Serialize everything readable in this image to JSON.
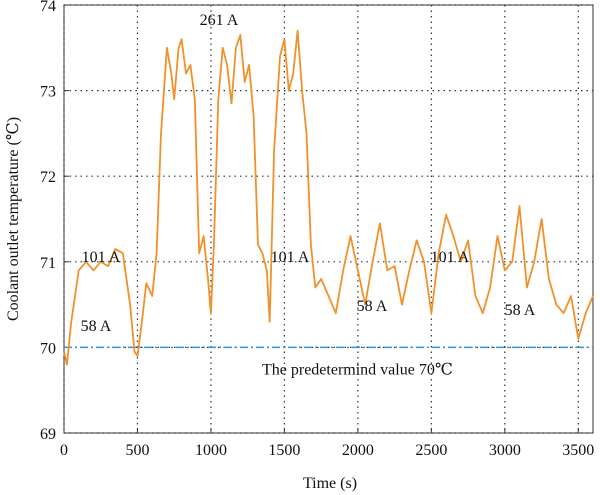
{
  "chart_data": {
    "type": "line",
    "x_label": "Time (s)",
    "y_label": "Coolant outlet temperature (℃)",
    "x": [
      0,
      20,
      50,
      100,
      150,
      200,
      250,
      300,
      350,
      400,
      450,
      480,
      500,
      530,
      560,
      600,
      630,
      660,
      700,
      730,
      750,
      780,
      800,
      830,
      860,
      890,
      920,
      950,
      980,
      1000,
      1020,
      1050,
      1080,
      1110,
      1140,
      1170,
      1200,
      1230,
      1260,
      1290,
      1320,
      1350,
      1380,
      1400,
      1430,
      1470,
      1500,
      1530,
      1560,
      1590,
      1620,
      1650,
      1680,
      1710,
      1750,
      1800,
      1850,
      1900,
      1950,
      2000,
      2050,
      2100,
      2150,
      2200,
      2250,
      2300,
      2350,
      2400,
      2450,
      2500,
      2550,
      2600,
      2650,
      2700,
      2750,
      2800,
      2850,
      2900,
      2950,
      3000,
      3050,
      3100,
      3150,
      3200,
      3250,
      3300,
      3350,
      3400,
      3450,
      3500,
      3550,
      3600
    ],
    "series": [
      {
        "name": "Coolant outlet temperature",
        "color": "#f0922b",
        "values": [
          69.95,
          69.8,
          70.3,
          70.9,
          71.0,
          70.9,
          71.0,
          70.95,
          71.15,
          71.1,
          70.5,
          69.95,
          69.9,
          70.3,
          70.75,
          70.6,
          71.1,
          72.5,
          73.5,
          73.2,
          72.9,
          73.5,
          73.6,
          73.2,
          73.3,
          72.9,
          71.1,
          71.3,
          70.8,
          70.4,
          71.2,
          72.9,
          73.5,
          73.3,
          72.85,
          73.5,
          73.65,
          73.1,
          73.3,
          72.7,
          71.2,
          71.1,
          70.9,
          70.3,
          72.3,
          73.4,
          73.6,
          73.0,
          73.2,
          73.7,
          73.0,
          72.5,
          71.2,
          70.7,
          70.8,
          70.6,
          70.4,
          70.9,
          71.3,
          70.9,
          70.5,
          71.0,
          71.45,
          70.9,
          70.95,
          70.5,
          70.9,
          71.25,
          71.0,
          70.4,
          71.1,
          71.55,
          71.3,
          71.0,
          71.25,
          70.6,
          70.4,
          70.7,
          71.3,
          70.9,
          71.0,
          71.65,
          70.7,
          71.0,
          71.5,
          70.8,
          70.5,
          70.4,
          70.6,
          70.1,
          70.4,
          70.6
        ]
      }
    ],
    "reference_line": {
      "value": 70,
      "label": "The predetermind value 70℃",
      "color": "#3a8fd6"
    },
    "annotations": [
      "261 A",
      "101 A",
      "101 A",
      "101 A",
      "58 A",
      "58 A",
      "58 A"
    ],
    "xlim": [
      0,
      3600
    ],
    "xticks": [
      0,
      500,
      1000,
      1500,
      2000,
      2500,
      3000,
      3500
    ],
    "ylim": [
      69,
      74
    ],
    "yticks": [
      69,
      70,
      71,
      72,
      73,
      74
    ],
    "grid": true
  }
}
